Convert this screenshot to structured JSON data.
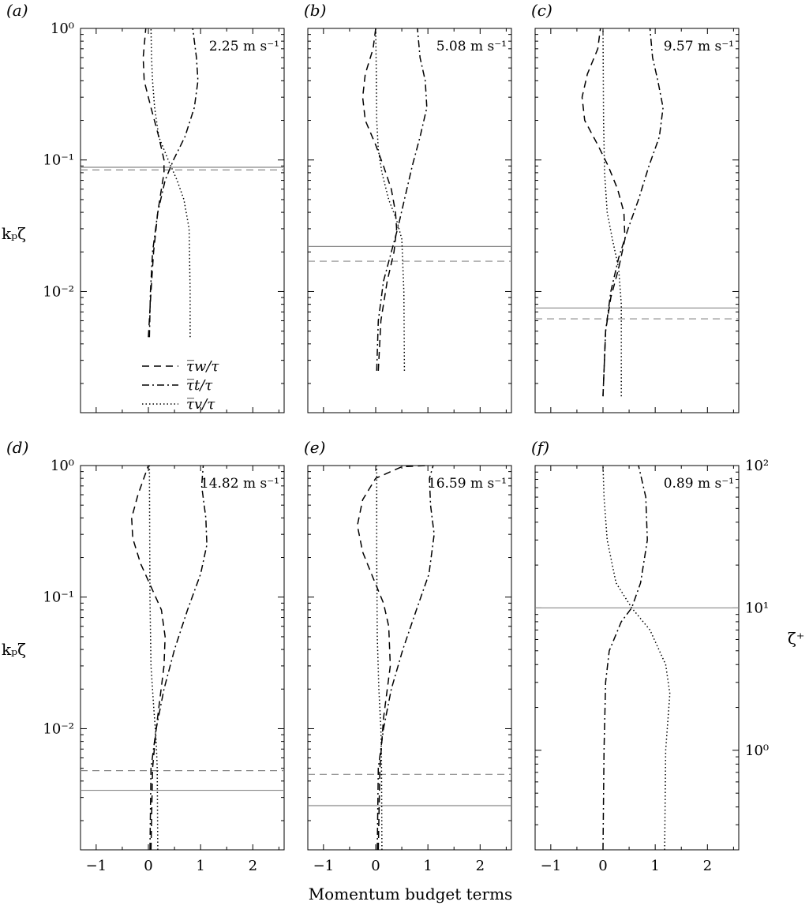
{
  "figure": {
    "xlabel": "Momentum budget terms",
    "ylabel_left": "kₚζ",
    "ylabel_right": "ζ⁺",
    "legend": [
      {
        "label": "τ̅w/τ",
        "style": "dashed"
      },
      {
        "label": "τ̅t/τ",
        "style": "dashdot"
      },
      {
        "label": "τ̅v/τ",
        "style": "dotted"
      }
    ]
  },
  "chart_data": [
    {
      "type": "line",
      "panel": "(a)",
      "annotation": "2.25 m s⁻¹",
      "xlim": [
        -1.3,
        2.6
      ],
      "xticks": [
        -1,
        0,
        1,
        2
      ],
      "yscale": "log",
      "ylim": [
        0.0012,
        1
      ],
      "yticks": [
        "10⁰",
        "10⁻¹",
        "10⁻²"
      ],
      "ylabel": "kₚζ",
      "hlines": [
        {
          "y": 0.088,
          "style": "solid"
        },
        {
          "y": 0.084,
          "style": "dashed"
        }
      ],
      "series": [
        {
          "name": "τ̅w/τ",
          "style": "dashed",
          "points": [
            [
              0.0,
              0.0045
            ],
            [
              0.05,
              0.01
            ],
            [
              0.1,
              0.02
            ],
            [
              0.18,
              0.04
            ],
            [
              0.25,
              0.06
            ],
            [
              0.3,
              0.08
            ],
            [
              0.3,
              0.1
            ],
            [
              0.2,
              0.15
            ],
            [
              0.05,
              0.25
            ],
            [
              -0.08,
              0.4
            ],
            [
              -0.1,
              0.6
            ],
            [
              -0.05,
              1.0
            ]
          ]
        },
        {
          "name": "τ̅t/τ",
          "style": "dashdot",
          "points": [
            [
              0.02,
              0.0045
            ],
            [
              0.04,
              0.01
            ],
            [
              0.08,
              0.02
            ],
            [
              0.18,
              0.04
            ],
            [
              0.32,
              0.07
            ],
            [
              0.48,
              0.1
            ],
            [
              0.7,
              0.15
            ],
            [
              0.88,
              0.25
            ],
            [
              0.95,
              0.4
            ],
            [
              0.92,
              0.6
            ],
            [
              0.85,
              1.0
            ]
          ]
        },
        {
          "name": "τ̅v/τ",
          "style": "dotted",
          "points": [
            [
              0.8,
              0.0045
            ],
            [
              0.8,
              0.01
            ],
            [
              0.78,
              0.03
            ],
            [
              0.68,
              0.05
            ],
            [
              0.55,
              0.07
            ],
            [
              0.38,
              0.1
            ],
            [
              0.2,
              0.15
            ],
            [
              0.12,
              0.25
            ],
            [
              0.08,
              0.4
            ],
            [
              0.06,
              0.6
            ],
            [
              0.05,
              1.0
            ]
          ]
        }
      ]
    },
    {
      "type": "line",
      "panel": "(b)",
      "annotation": "5.08 m s⁻¹",
      "xlim": [
        -1.3,
        2.6
      ],
      "xticks": [
        -1,
        0,
        1,
        2
      ],
      "yscale": "log",
      "ylim": [
        0.0012,
        1
      ],
      "hlines": [
        {
          "y": 0.022,
          "style": "solid"
        },
        {
          "y": 0.017,
          "style": "dashed"
        }
      ],
      "series": [
        {
          "name": "τ̅w/τ",
          "style": "dashed",
          "points": [
            [
              0.05,
              0.0025
            ],
            [
              0.1,
              0.006
            ],
            [
              0.22,
              0.012
            ],
            [
              0.35,
              0.02
            ],
            [
              0.4,
              0.03
            ],
            [
              0.38,
              0.04
            ],
            [
              0.3,
              0.06
            ],
            [
              0.15,
              0.09
            ],
            [
              0.0,
              0.13
            ],
            [
              -0.2,
              0.2
            ],
            [
              -0.25,
              0.3
            ],
            [
              -0.2,
              0.45
            ],
            [
              -0.05,
              0.7
            ],
            [
              0.0,
              1.0
            ]
          ]
        },
        {
          "name": "τ̅t/τ",
          "style": "dashdot",
          "points": [
            [
              0.02,
              0.0025
            ],
            [
              0.05,
              0.006
            ],
            [
              0.15,
              0.012
            ],
            [
              0.3,
              0.02
            ],
            [
              0.42,
              0.03
            ],
            [
              0.55,
              0.05
            ],
            [
              0.7,
              0.09
            ],
            [
              0.85,
              0.15
            ],
            [
              0.98,
              0.25
            ],
            [
              0.95,
              0.4
            ],
            [
              0.85,
              0.6
            ],
            [
              0.8,
              1.0
            ]
          ]
        },
        {
          "name": "τ̅v/τ",
          "style": "dotted",
          "points": [
            [
              0.55,
              0.0025
            ],
            [
              0.54,
              0.01
            ],
            [
              0.5,
              0.025
            ],
            [
              0.4,
              0.035
            ],
            [
              0.25,
              0.05
            ],
            [
              0.12,
              0.08
            ],
            [
              0.05,
              0.12
            ],
            [
              0.02,
              0.2
            ],
            [
              0.01,
              0.5
            ],
            [
              0.0,
              1.0
            ]
          ]
        }
      ]
    },
    {
      "type": "line",
      "panel": "(c)",
      "annotation": "9.57 m s⁻¹",
      "xlim": [
        -1.3,
        2.6
      ],
      "xticks": [
        -1,
        0,
        1,
        2
      ],
      "yscale": "log",
      "ylim": [
        0.0012,
        1
      ],
      "hlines": [
        {
          "y": 0.0075,
          "style": "solid"
        },
        {
          "y": 0.0062,
          "style": "dashed"
        }
      ],
      "series": [
        {
          "name": "τ̅w/τ",
          "style": "dashed",
          "points": [
            [
              0.0,
              0.0016
            ],
            [
              0.05,
              0.005
            ],
            [
              0.15,
              0.009
            ],
            [
              0.3,
              0.015
            ],
            [
              0.42,
              0.025
            ],
            [
              0.4,
              0.04
            ],
            [
              0.28,
              0.06
            ],
            [
              0.1,
              0.09
            ],
            [
              -0.1,
              0.13
            ],
            [
              -0.35,
              0.2
            ],
            [
              -0.4,
              0.3
            ],
            [
              -0.3,
              0.45
            ],
            [
              -0.1,
              0.7
            ],
            [
              -0.05,
              1.0
            ]
          ]
        },
        {
          "name": "τ̅t/τ",
          "style": "dashdot",
          "points": [
            [
              0.0,
              0.0016
            ],
            [
              0.05,
              0.005
            ],
            [
              0.15,
              0.01
            ],
            [
              0.3,
              0.018
            ],
            [
              0.48,
              0.03
            ],
            [
              0.68,
              0.05
            ],
            [
              0.88,
              0.09
            ],
            [
              1.08,
              0.15
            ],
            [
              1.15,
              0.25
            ],
            [
              1.05,
              0.4
            ],
            [
              0.95,
              0.6
            ],
            [
              0.9,
              1.0
            ]
          ]
        },
        {
          "name": "τ̅v/τ",
          "style": "dotted",
          "points": [
            [
              0.35,
              0.0016
            ],
            [
              0.35,
              0.008
            ],
            [
              0.3,
              0.015
            ],
            [
              0.18,
              0.025
            ],
            [
              0.08,
              0.04
            ],
            [
              0.03,
              0.08
            ],
            [
              0.01,
              0.2
            ],
            [
              0.0,
              1.0
            ]
          ]
        }
      ]
    },
    {
      "type": "line",
      "panel": "(d)",
      "annotation": "14.82 m s⁻¹",
      "xlim": [
        -1.3,
        2.6
      ],
      "xticks": [
        -1,
        0,
        1,
        2
      ],
      "yscale": "log",
      "ylim": [
        0.0012,
        1
      ],
      "yticks": [
        "10⁰",
        "10⁻¹",
        "10⁻²"
      ],
      "ylabel": "kₚζ",
      "hlines": [
        {
          "y": 0.0048,
          "style": "dashed"
        },
        {
          "y": 0.0034,
          "style": "solid"
        }
      ],
      "series": [
        {
          "name": "τ̅w/τ",
          "style": "dashed",
          "points": [
            [
              0.05,
              0.0012
            ],
            [
              0.08,
              0.005
            ],
            [
              0.15,
              0.01
            ],
            [
              0.3,
              0.03
            ],
            [
              0.32,
              0.05
            ],
            [
              0.25,
              0.08
            ],
            [
              0.05,
              0.12
            ],
            [
              -0.15,
              0.18
            ],
            [
              -0.3,
              0.28
            ],
            [
              -0.32,
              0.4
            ],
            [
              -0.2,
              0.6
            ],
            [
              0.0,
              1.0
            ]
          ]
        },
        {
          "name": "τ̅t/τ",
          "style": "dashdot",
          "points": [
            [
              0.03,
              0.0012
            ],
            [
              0.05,
              0.005
            ],
            [
              0.15,
              0.01
            ],
            [
              0.3,
              0.02
            ],
            [
              0.5,
              0.04
            ],
            [
              0.75,
              0.08
            ],
            [
              1.0,
              0.15
            ],
            [
              1.12,
              0.25
            ],
            [
              1.1,
              0.4
            ],
            [
              1.02,
              0.7
            ],
            [
              1.05,
              1.0
            ]
          ]
        },
        {
          "name": "τ̅v/τ",
          "style": "dotted",
          "points": [
            [
              0.18,
              0.0012
            ],
            [
              0.17,
              0.005
            ],
            [
              0.15,
              0.008
            ],
            [
              0.1,
              0.015
            ],
            [
              0.05,
              0.03
            ],
            [
              0.03,
              0.1
            ],
            [
              0.02,
              1.0
            ]
          ]
        }
      ]
    },
    {
      "type": "line",
      "panel": "(e)",
      "annotation": "16.59 m s⁻¹",
      "xlim": [
        -1.3,
        2.6
      ],
      "xticks": [
        -1,
        0,
        1,
        2
      ],
      "yscale": "log",
      "ylim": [
        0.0012,
        1
      ],
      "hlines": [
        {
          "y": 0.0045,
          "style": "dashed"
        },
        {
          "y": 0.0026,
          "style": "solid"
        }
      ],
      "series": [
        {
          "name": "τ̅w/τ",
          "style": "dashed",
          "points": [
            [
              0.05,
              0.0012
            ],
            [
              0.08,
              0.005
            ],
            [
              0.15,
              0.012
            ],
            [
              0.28,
              0.03
            ],
            [
              0.25,
              0.06
            ],
            [
              0.15,
              0.09
            ],
            [
              -0.05,
              0.14
            ],
            [
              -0.25,
              0.22
            ],
            [
              -0.35,
              0.35
            ],
            [
              -0.25,
              0.55
            ],
            [
              0.0,
              0.8
            ],
            [
              0.5,
              0.98
            ],
            [
              0.98,
              1.0
            ]
          ]
        },
        {
          "name": "τ̅t/τ",
          "style": "dashdot",
          "points": [
            [
              0.03,
              0.0012
            ],
            [
              0.05,
              0.005
            ],
            [
              0.15,
              0.01
            ],
            [
              0.3,
              0.02
            ],
            [
              0.52,
              0.04
            ],
            [
              0.78,
              0.08
            ],
            [
              1.02,
              0.15
            ],
            [
              1.12,
              0.3
            ],
            [
              1.05,
              0.5
            ],
            [
              1.03,
              0.8
            ],
            [
              1.1,
              1.0
            ]
          ]
        },
        {
          "name": "τ̅v/τ",
          "style": "dotted",
          "points": [
            [
              0.12,
              0.0012
            ],
            [
              0.11,
              0.006
            ],
            [
              0.1,
              0.01
            ],
            [
              0.06,
              0.02
            ],
            [
              0.03,
              0.05
            ],
            [
              0.02,
              0.2
            ],
            [
              0.02,
              1.0
            ]
          ]
        }
      ]
    },
    {
      "type": "line",
      "panel": "(f)",
      "annotation": "0.89 m s⁻¹",
      "xlim": [
        -1.3,
        2.6
      ],
      "xticks": [
        -1,
        0,
        1,
        2
      ],
      "yscale": "log",
      "y2lim": [
        0.2,
        100
      ],
      "y2ticks": [
        "10²",
        "10¹",
        "10⁰"
      ],
      "y2label": "ζ⁺",
      "hlines": [
        {
          "y2": 10,
          "style": "solid"
        }
      ],
      "series": [
        {
          "name": "τ̅t/τ",
          "style": "dashdot",
          "points": [
            [
              0.0,
              0.2
            ],
            [
              0.02,
              1.0
            ],
            [
              0.05,
              3.0
            ],
            [
              0.12,
              5.0
            ],
            [
              0.35,
              8.0
            ],
            [
              0.55,
              10.0
            ],
            [
              0.72,
              15.0
            ],
            [
              0.85,
              30.0
            ],
            [
              0.82,
              60.0
            ],
            [
              0.68,
              100.0
            ]
          ]
        },
        {
          "name": "τ̅v/τ",
          "style": "dotted",
          "points": [
            [
              1.18,
              0.2
            ],
            [
              1.2,
              1.0
            ],
            [
              1.28,
              2.5
            ],
            [
              1.2,
              4.0
            ],
            [
              0.9,
              7.0
            ],
            [
              0.55,
              10.0
            ],
            [
              0.25,
              15.0
            ],
            [
              0.08,
              30.0
            ],
            [
              0.02,
              60.0
            ],
            [
              0.0,
              100.0
            ]
          ]
        }
      ]
    }
  ]
}
